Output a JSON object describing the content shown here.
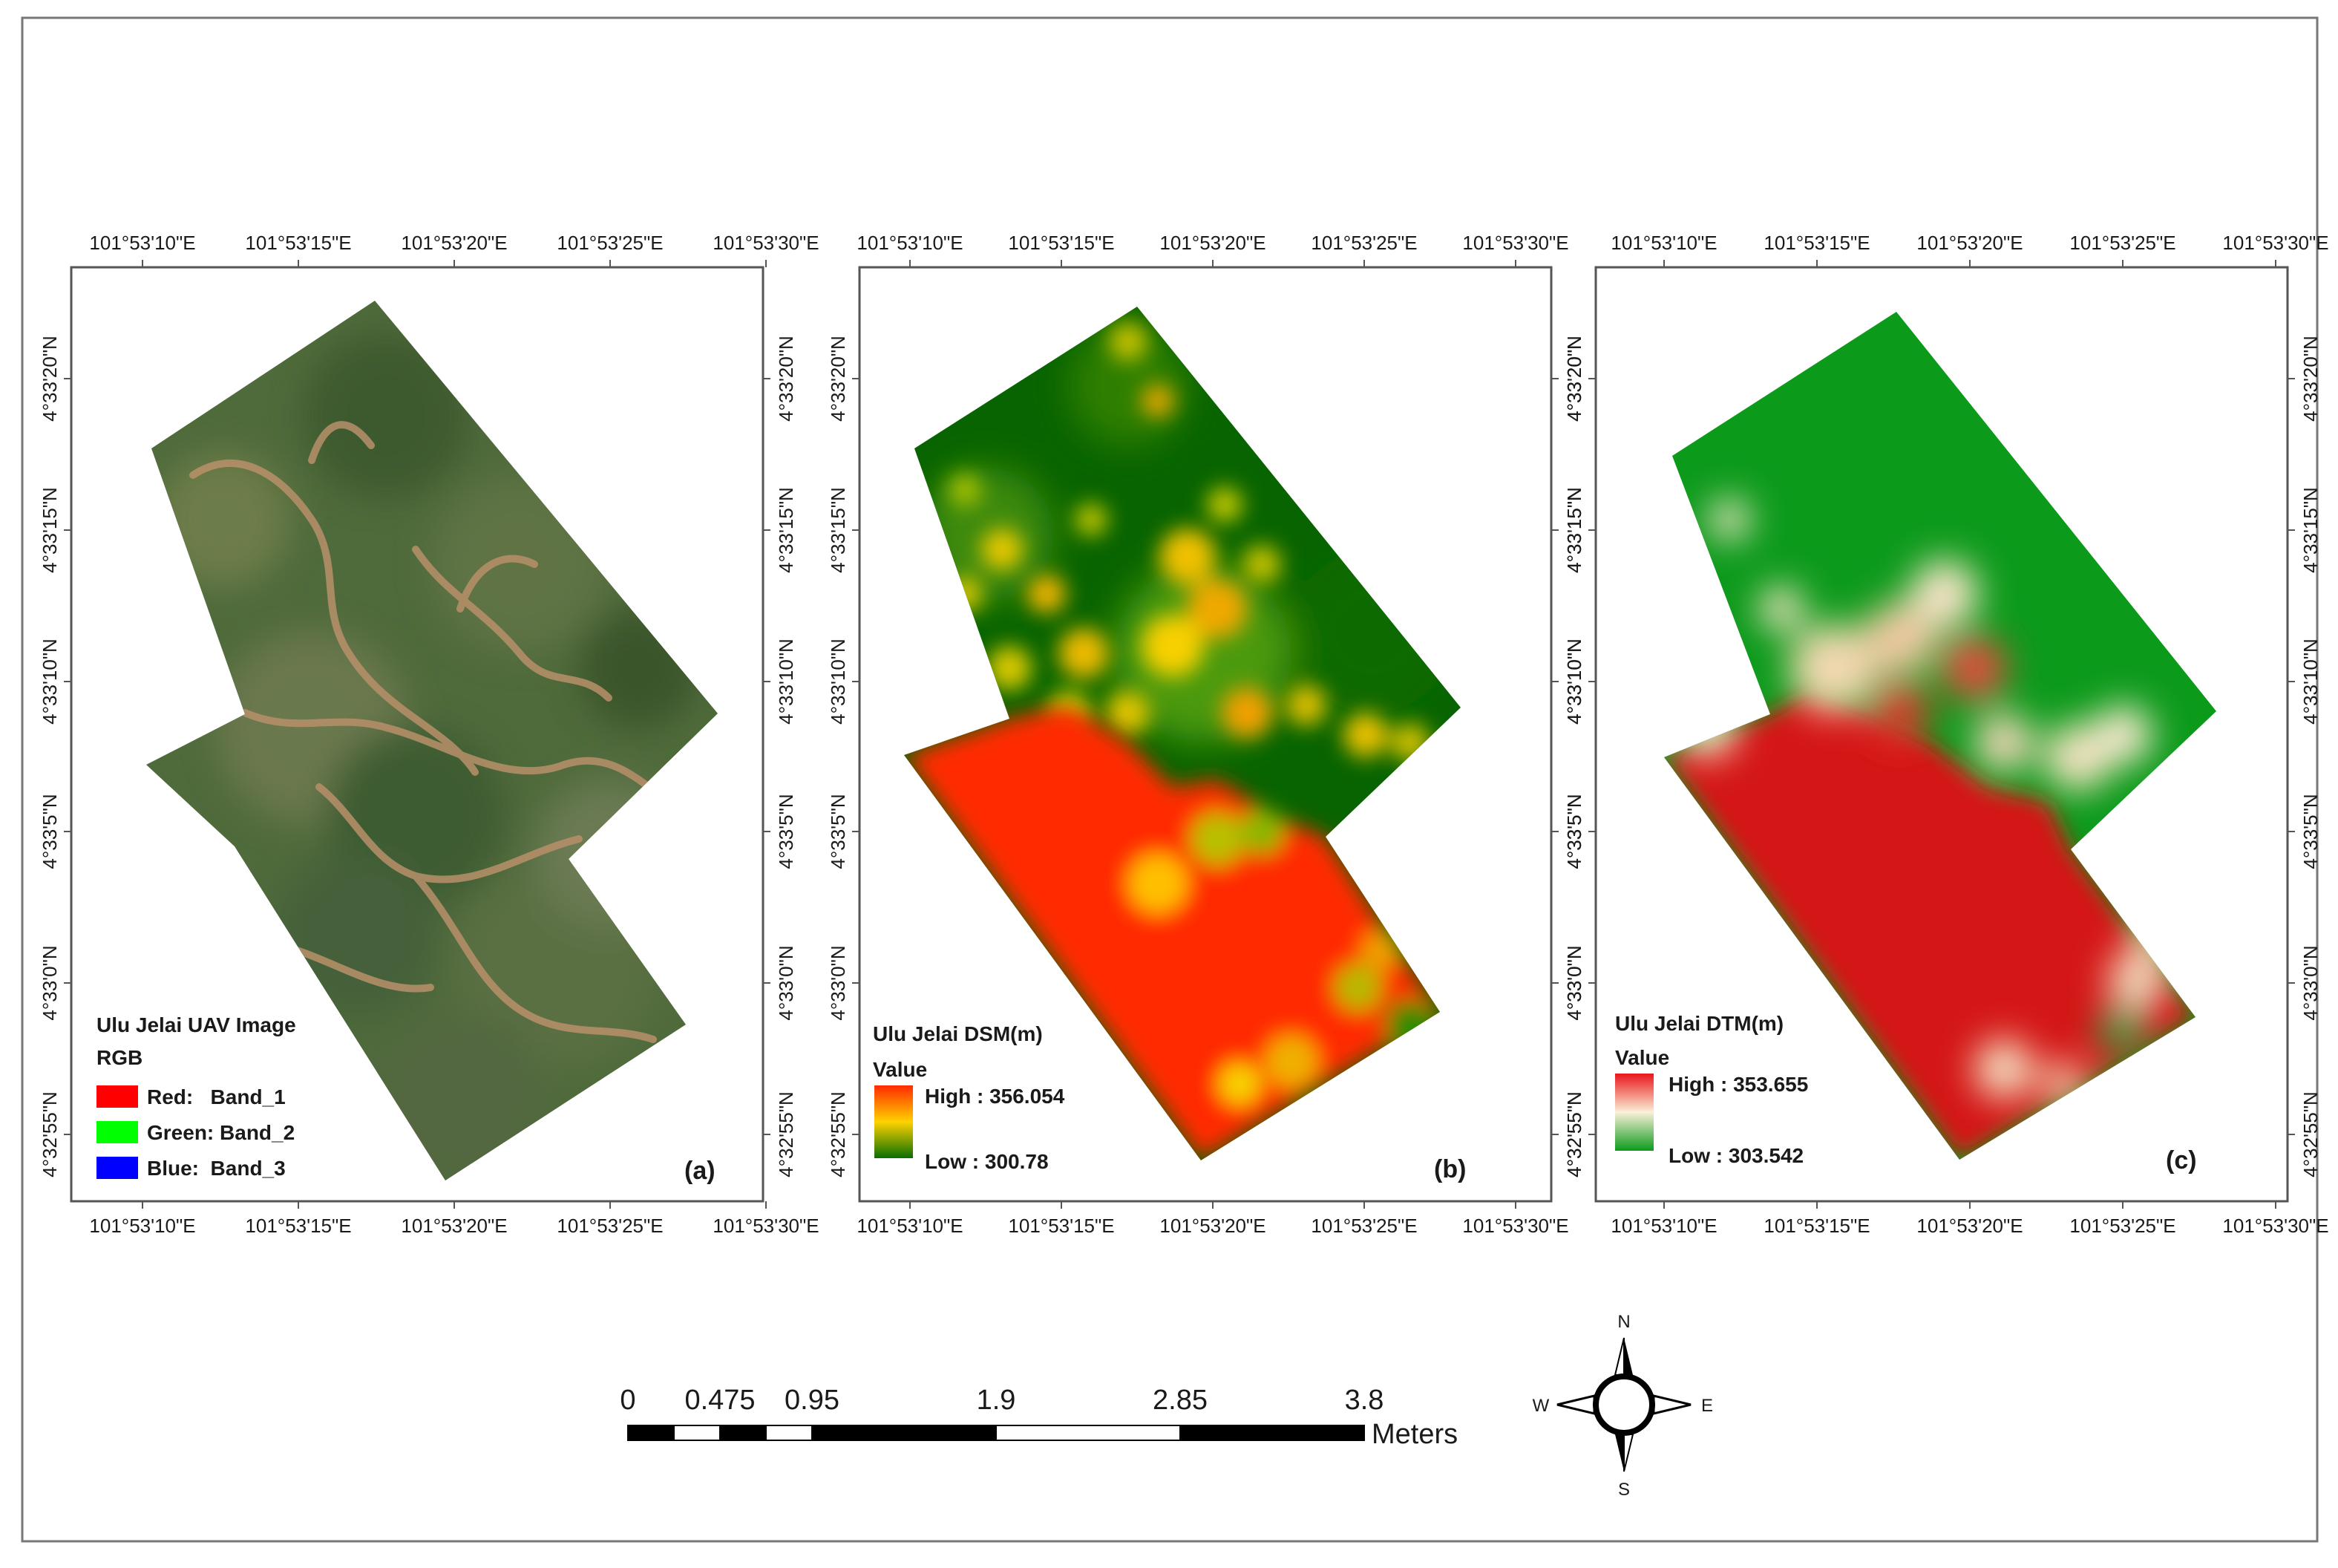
{
  "panels": [
    {
      "label": "(a)",
      "legend_title": "Ulu Jelai UAV Image",
      "legend_subtitle": "RGB",
      "legend_items": [
        {
          "label": "Red:   Band_1",
          "color": "#ff0000"
        },
        {
          "label": "Green: Band_2",
          "color": "#00ff00"
        },
        {
          "label": "Blue:  Band_3",
          "color": "#0000ff"
        }
      ]
    },
    {
      "label": "(b)",
      "legend_title": "Ulu Jelai DSM(m)",
      "value_label": "Value",
      "high_label": "High : 356.054",
      "low_label": "Low : 300.78",
      "ramp": [
        "#ff2a00",
        "#ffd200",
        "#0a6e00"
      ]
    },
    {
      "label": "(c)",
      "legend_title": "Ulu Jelai DTM(m)",
      "value_label": "Value",
      "high_label": "High : 353.655",
      "low_label": "Low : 303.542",
      "ramp": [
        "#e8151a",
        "#fbf0d8",
        "#0c9a1b"
      ]
    }
  ],
  "axes": {
    "lon_labels": [
      "101°53'10\"E",
      "101°53'15\"E",
      "101°53'20\"E",
      "101°53'25\"E",
      "101°53'30\"E"
    ],
    "lat_labels": [
      "4°33'20\"N",
      "4°33'15\"N",
      "4°33'10\"N",
      "4°33'5\"N",
      "4°33'0\"N",
      "4°32'55\"N"
    ]
  },
  "scale_bar": {
    "ticks": [
      "0",
      "0.475",
      "0.95",
      "1.9",
      "2.85",
      "3.8"
    ],
    "unit": "Meters"
  },
  "north_arrow": {
    "n": "N",
    "s": "S",
    "e": "E",
    "w": "W"
  },
  "colors": {
    "dsm_low": "#0a6e00",
    "dsm_high": "#ff2a00",
    "dtm_low": "#0c9a1b",
    "dtm_high": "#d41214",
    "forest": "#4f6a3b",
    "road": "#b8906a"
  }
}
